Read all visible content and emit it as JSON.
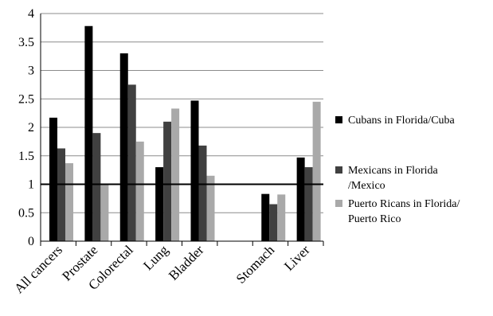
{
  "chart_data": {
    "type": "bar",
    "title": "",
    "xlabel": "",
    "ylabel": "",
    "ylim": [
      0,
      4
    ],
    "yticks": [
      "0",
      "0.5",
      "1",
      "1.5",
      "2",
      "2.5",
      "3",
      "3.5",
      "4"
    ],
    "grid": "horizontal",
    "reference_line": 1,
    "legend_position": "right",
    "categories": [
      "All cancers",
      "Prostate",
      "Colorectal",
      "Lung",
      "Bladder",
      "",
      "Stomach",
      "Liver"
    ],
    "series": [
      {
        "name": "Cubans in Florida/Cuba",
        "color": "#000000",
        "values": [
          2.17,
          3.78,
          3.3,
          1.3,
          2.47,
          null,
          0.83,
          1.47
        ]
      },
      {
        "name": "Mexicans in Florida /Mexico",
        "color": "#404040",
        "values": [
          1.63,
          1.9,
          2.75,
          2.1,
          1.68,
          null,
          0.65,
          1.3
        ]
      },
      {
        "name": "Puerto Ricans in Florida/ Puerto Rico",
        "color": "#a9a9a9",
        "values": [
          1.37,
          1.0,
          1.75,
          2.33,
          1.15,
          null,
          0.82,
          2.45
        ]
      }
    ],
    "legend_lines": [
      [
        "Cubans in Florida/Cuba"
      ],
      [
        "Mexicans in Florida",
        "/Mexico"
      ],
      [
        "Puerto Ricans in Florida/",
        "Puerto Rico"
      ]
    ]
  }
}
